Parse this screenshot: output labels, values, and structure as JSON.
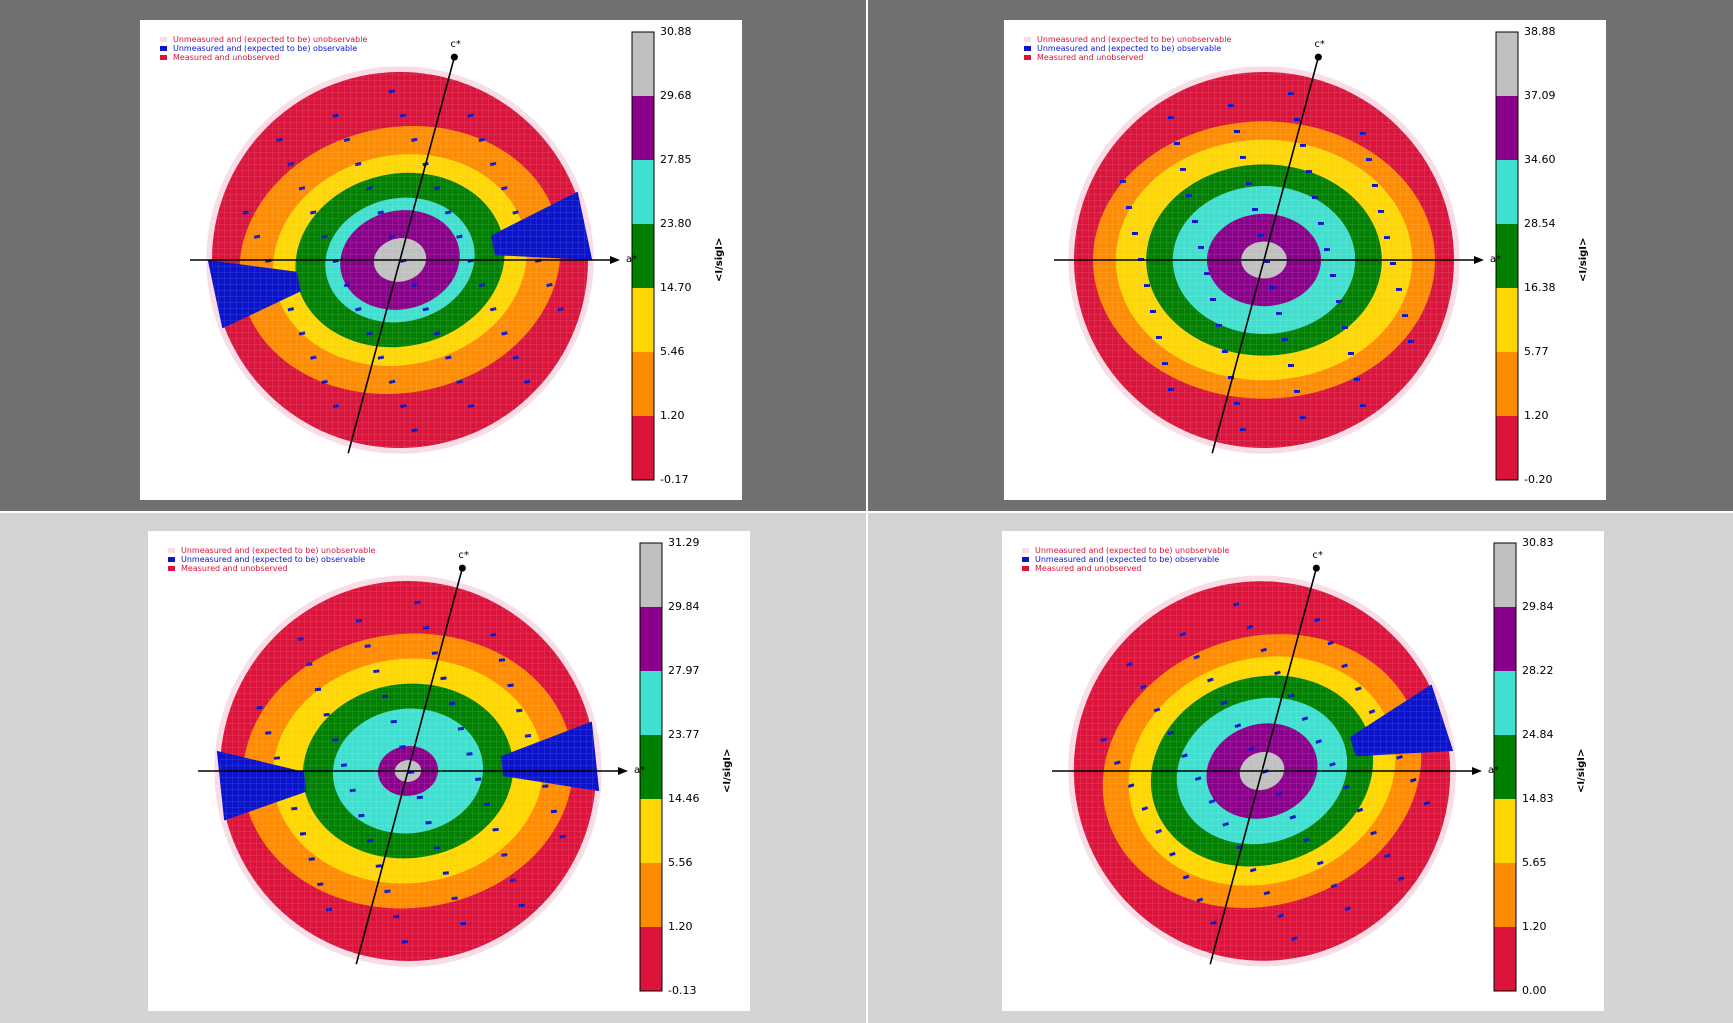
{
  "legend": {
    "entries": [
      {
        "label": "Unmeasured and (expected to be) unobservable",
        "color": "#f9dde6"
      },
      {
        "label": "Unmeasured and (expected to be) observable",
        "color": "#0a14cc"
      },
      {
        "label": "Measured and unobserved",
        "color": "#dc143c"
      }
    ],
    "text_colors": [
      "#dc143c",
      "#0a14cc",
      "#dc143c"
    ]
  },
  "colorbar_colors": [
    "#dc143c",
    "#ff8c00",
    "#ffd700",
    "#008000",
    "#40e0d0",
    "#8b008b",
    "#c0c0c0"
  ],
  "axes": {
    "horizontal": "a*",
    "vertical": "c*"
  },
  "chart_data": [
    {
      "type": "heatmap",
      "panel": "top-left",
      "colorbar_label": "<I/sigI>",
      "colorbar_ticks": [
        "-0.17",
        "1.20",
        "5.46",
        "14.70",
        "23.80",
        "27.85",
        "29.68",
        "30.88"
      ],
      "background": "#707070"
    },
    {
      "type": "heatmap",
      "panel": "top-right",
      "colorbar_label": "<I/sigI>",
      "colorbar_ticks": [
        "-0.20",
        "1.20",
        "5.77",
        "16.38",
        "28.54",
        "34.60",
        "37.09",
        "38.88"
      ],
      "background": "#707070"
    },
    {
      "type": "heatmap",
      "panel": "bottom-left",
      "colorbar_label": "<I/sigI>",
      "colorbar_ticks": [
        "-0.13",
        "1.20",
        "5.56",
        "14.46",
        "23.77",
        "27.97",
        "29.84",
        "31.29"
      ],
      "background": "#d3d3d3"
    },
    {
      "type": "heatmap",
      "panel": "bottom-right",
      "colorbar_label": "<I/sigI>",
      "colorbar_ticks": [
        "0.00",
        "1.20",
        "5.65",
        "14.83",
        "24.84",
        "28.22",
        "29.84",
        "30.83"
      ],
      "background": "#d3d3d3"
    }
  ]
}
